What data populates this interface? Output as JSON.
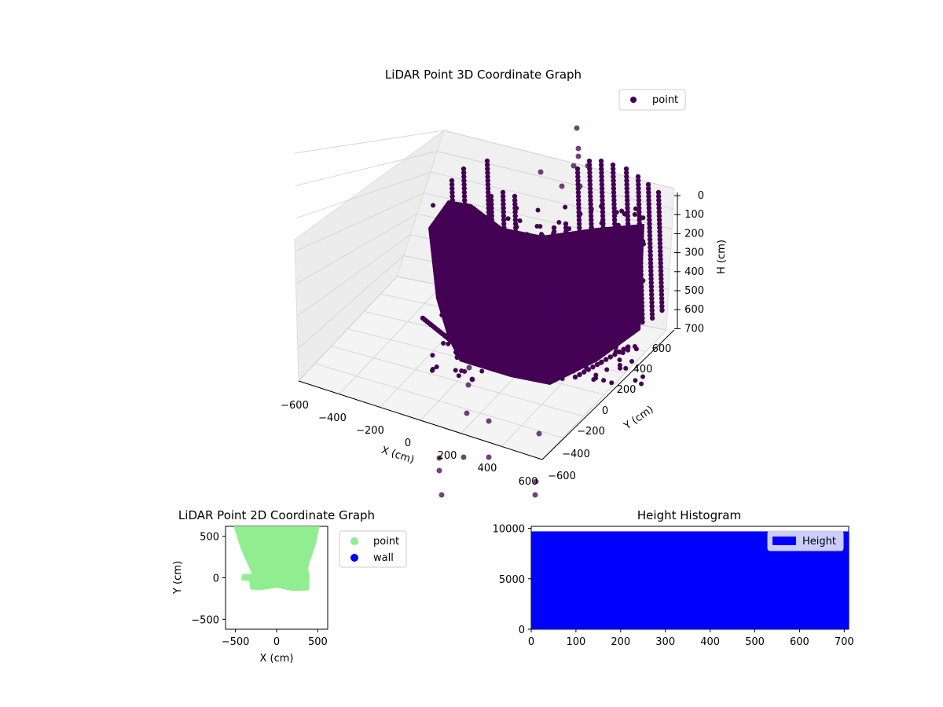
{
  "colors": {
    "point3d": "#440154",
    "point2d": "#90ee90",
    "wall": "#0000ff",
    "hist": "#0000ff",
    "pane": "#f2f2f2",
    "grid": "#d0d0d0"
  },
  "chart_data": [
    {
      "type": "scatter",
      "title": "LiDAR Point 3D Coordinate Graph",
      "xlabel": "X (cm)",
      "ylabel": "Y (cm)",
      "zlabel": "H (cm)",
      "xticks": [
        "−600",
        "−400",
        "−200",
        "0",
        "200",
        "400",
        "600"
      ],
      "yticks": [
        "−600",
        "−400",
        "−200",
        "0",
        "200",
        "400",
        "600"
      ],
      "zticks": [
        "0",
        "100",
        "200",
        "300",
        "400",
        "500",
        "600",
        "700"
      ],
      "xlim": [
        -600,
        600
      ],
      "ylim": [
        -600,
        600
      ],
      "zlim": [
        700,
        0
      ],
      "legend": {
        "position": "upper-right",
        "entries": [
          {
            "name": "point",
            "color": "#440154"
          }
        ]
      },
      "grid": true,
      "series": [
        {
          "name": "point",
          "color": "#440154",
          "description_points": "dense point cloud, heights 0–700 cm"
        }
      ]
    },
    {
      "type": "scatter",
      "title": "LiDAR Point 2D Coordinate Graph",
      "xlabel": "X (cm)",
      "ylabel": "Y (cm)",
      "xticks": [
        "−500",
        "0",
        "500"
      ],
      "yticks": [
        "−500",
        "0",
        "500"
      ],
      "xlim": [
        -620,
        620
      ],
      "ylim": [
        -620,
        620
      ],
      "legend": {
        "position": "outside-right",
        "entries": [
          {
            "name": "point",
            "color": "#90ee90"
          },
          {
            "name": "wall",
            "color": "#0000ff"
          }
        ]
      },
      "grid": false
    },
    {
      "type": "bar",
      "title": "Height Histogram",
      "xticks": [
        "0",
        "100",
        "200",
        "300",
        "400",
        "500",
        "600",
        "700"
      ],
      "yticks": [
        "0",
        "5000",
        "10000"
      ],
      "xlim": [
        0,
        710
      ],
      "ylim": [
        0,
        10200
      ],
      "values_description": "uniform count per height bin",
      "bin_value": 9700,
      "legend": {
        "position": "upper-right",
        "entries": [
          {
            "name": "Height",
            "color": "#0000ff"
          }
        ]
      },
      "grid": false
    }
  ]
}
